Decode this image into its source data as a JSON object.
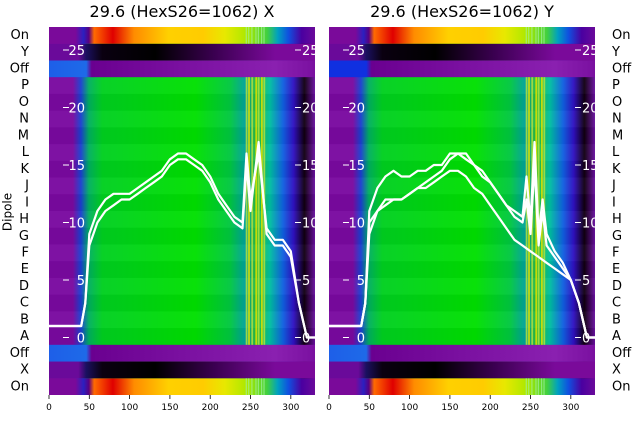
{
  "chart_data": [
    {
      "type": "heatmap",
      "title": "29.6 (HexS26=1062) X",
      "ylabel": "Dipole",
      "row_labels": [
        "On",
        "X",
        "Off",
        "A",
        "B",
        "C",
        "D",
        "E",
        "F",
        "G",
        "H",
        "I",
        "J",
        "K",
        "L",
        "M",
        "N",
        "O",
        "P",
        "Off",
        "Y",
        "On"
      ],
      "x_ticks": [
        0,
        50,
        100,
        150,
        200,
        250,
        300
      ],
      "xlim": [
        0,
        330
      ],
      "overlay_yticks": [
        0,
        5,
        10,
        15,
        20,
        25
      ],
      "overlay_ylim": [
        -5,
        27
      ],
      "overlay_lines": [
        {
          "x": [
            0,
            40,
            45,
            50,
            60,
            70,
            80,
            90,
            100,
            110,
            120,
            130,
            140,
            150,
            160,
            170,
            180,
            190,
            200,
            210,
            220,
            230,
            240,
            245,
            250,
            255,
            260,
            270,
            280,
            290,
            300,
            310,
            320,
            330
          ],
          "y": [
            1,
            1,
            3,
            8,
            10,
            11,
            11.5,
            12,
            12,
            12.5,
            13,
            13.5,
            14,
            15,
            15.5,
            15.5,
            15,
            14.5,
            13.5,
            12,
            11,
            10,
            9.5,
            15,
            11,
            14,
            17,
            9,
            8,
            8,
            7,
            3,
            0,
            0
          ]
        },
        {
          "x": [
            0,
            40,
            45,
            50,
            60,
            70,
            80,
            90,
            100,
            110,
            120,
            130,
            140,
            150,
            160,
            170,
            180,
            190,
            200,
            210,
            220,
            230,
            240,
            245,
            250,
            255,
            260,
            270,
            280,
            290,
            300,
            310,
            320,
            330
          ],
          "y": [
            1,
            1,
            3,
            9,
            11,
            12,
            12.5,
            12.5,
            12.5,
            13,
            13.5,
            14,
            14.5,
            15.5,
            16,
            16,
            15.5,
            15,
            14,
            12.5,
            11.5,
            10.5,
            10,
            16,
            12,
            14,
            16,
            9.5,
            8.5,
            8.5,
            7.5,
            3,
            0,
            0
          ]
        }
      ]
    },
    {
      "type": "heatmap",
      "title": "29.6 (HexS26=1062) Y",
      "ylabel": "",
      "row_labels": [
        "On",
        "X",
        "Off",
        "A",
        "B",
        "C",
        "D",
        "E",
        "F",
        "G",
        "H",
        "I",
        "J",
        "K",
        "L",
        "M",
        "N",
        "O",
        "P",
        "Off",
        "Y",
        "On"
      ],
      "x_ticks": [
        0,
        50,
        100,
        150,
        200,
        250,
        300
      ],
      "xlim": [
        0,
        330
      ],
      "overlay_yticks": [
        0,
        5,
        10,
        15,
        20,
        25
      ],
      "overlay_ylim": [
        -5,
        27
      ],
      "overlay_lines": [
        {
          "x": [
            0,
            40,
            45,
            50,
            60,
            70,
            80,
            90,
            100,
            110,
            120,
            130,
            140,
            150,
            160,
            170,
            180,
            190,
            200,
            210,
            220,
            230,
            240,
            245,
            250,
            255,
            260,
            265,
            270,
            280,
            290,
            300,
            310,
            320,
            330
          ],
          "y": [
            1,
            1,
            3,
            10,
            11,
            11.5,
            12,
            12,
            12.5,
            13,
            13.5,
            14,
            14.5,
            15.5,
            16,
            16,
            15,
            14,
            13.5,
            12.5,
            11.5,
            10.5,
            10,
            12,
            9,
            15,
            8,
            11,
            8,
            7,
            6,
            5,
            3,
            0,
            0
          ]
        },
        {
          "x": [
            0,
            40,
            45,
            50,
            60,
            70,
            80,
            90,
            100,
            110,
            120,
            130,
            140,
            150,
            160,
            170,
            180,
            190,
            200,
            210,
            220,
            230,
            240,
            245,
            250,
            255,
            260,
            265,
            270,
            280,
            290,
            300,
            310,
            320,
            330
          ],
          "y": [
            1,
            1,
            3,
            11,
            13,
            14,
            14.5,
            14,
            14,
            14.5,
            14.5,
            15,
            15,
            16,
            16,
            15.5,
            15,
            14.5,
            13.5,
            12.5,
            11.5,
            11,
            10.5,
            14,
            10,
            17,
            9,
            12,
            9,
            7.5,
            6.5,
            5,
            3,
            0,
            0
          ]
        },
        {
          "x": [
            0,
            40,
            45,
            50,
            60,
            70,
            80,
            90,
            100,
            110,
            120,
            130,
            140,
            150,
            160,
            170,
            180,
            190,
            200,
            210,
            220,
            230,
            240,
            250,
            260,
            270,
            280,
            290,
            300,
            310,
            320,
            330
          ],
          "y": [
            1,
            1,
            3,
            9,
            11,
            12,
            12,
            12,
            12.5,
            13,
            13,
            13.5,
            14,
            14.5,
            14.5,
            14,
            13,
            12.5,
            11.5,
            10.5,
            9.5,
            8.5,
            8,
            7.5,
            7,
            6.5,
            6,
            5.5,
            5,
            3,
            0,
            0
          ]
        }
      ]
    }
  ]
}
